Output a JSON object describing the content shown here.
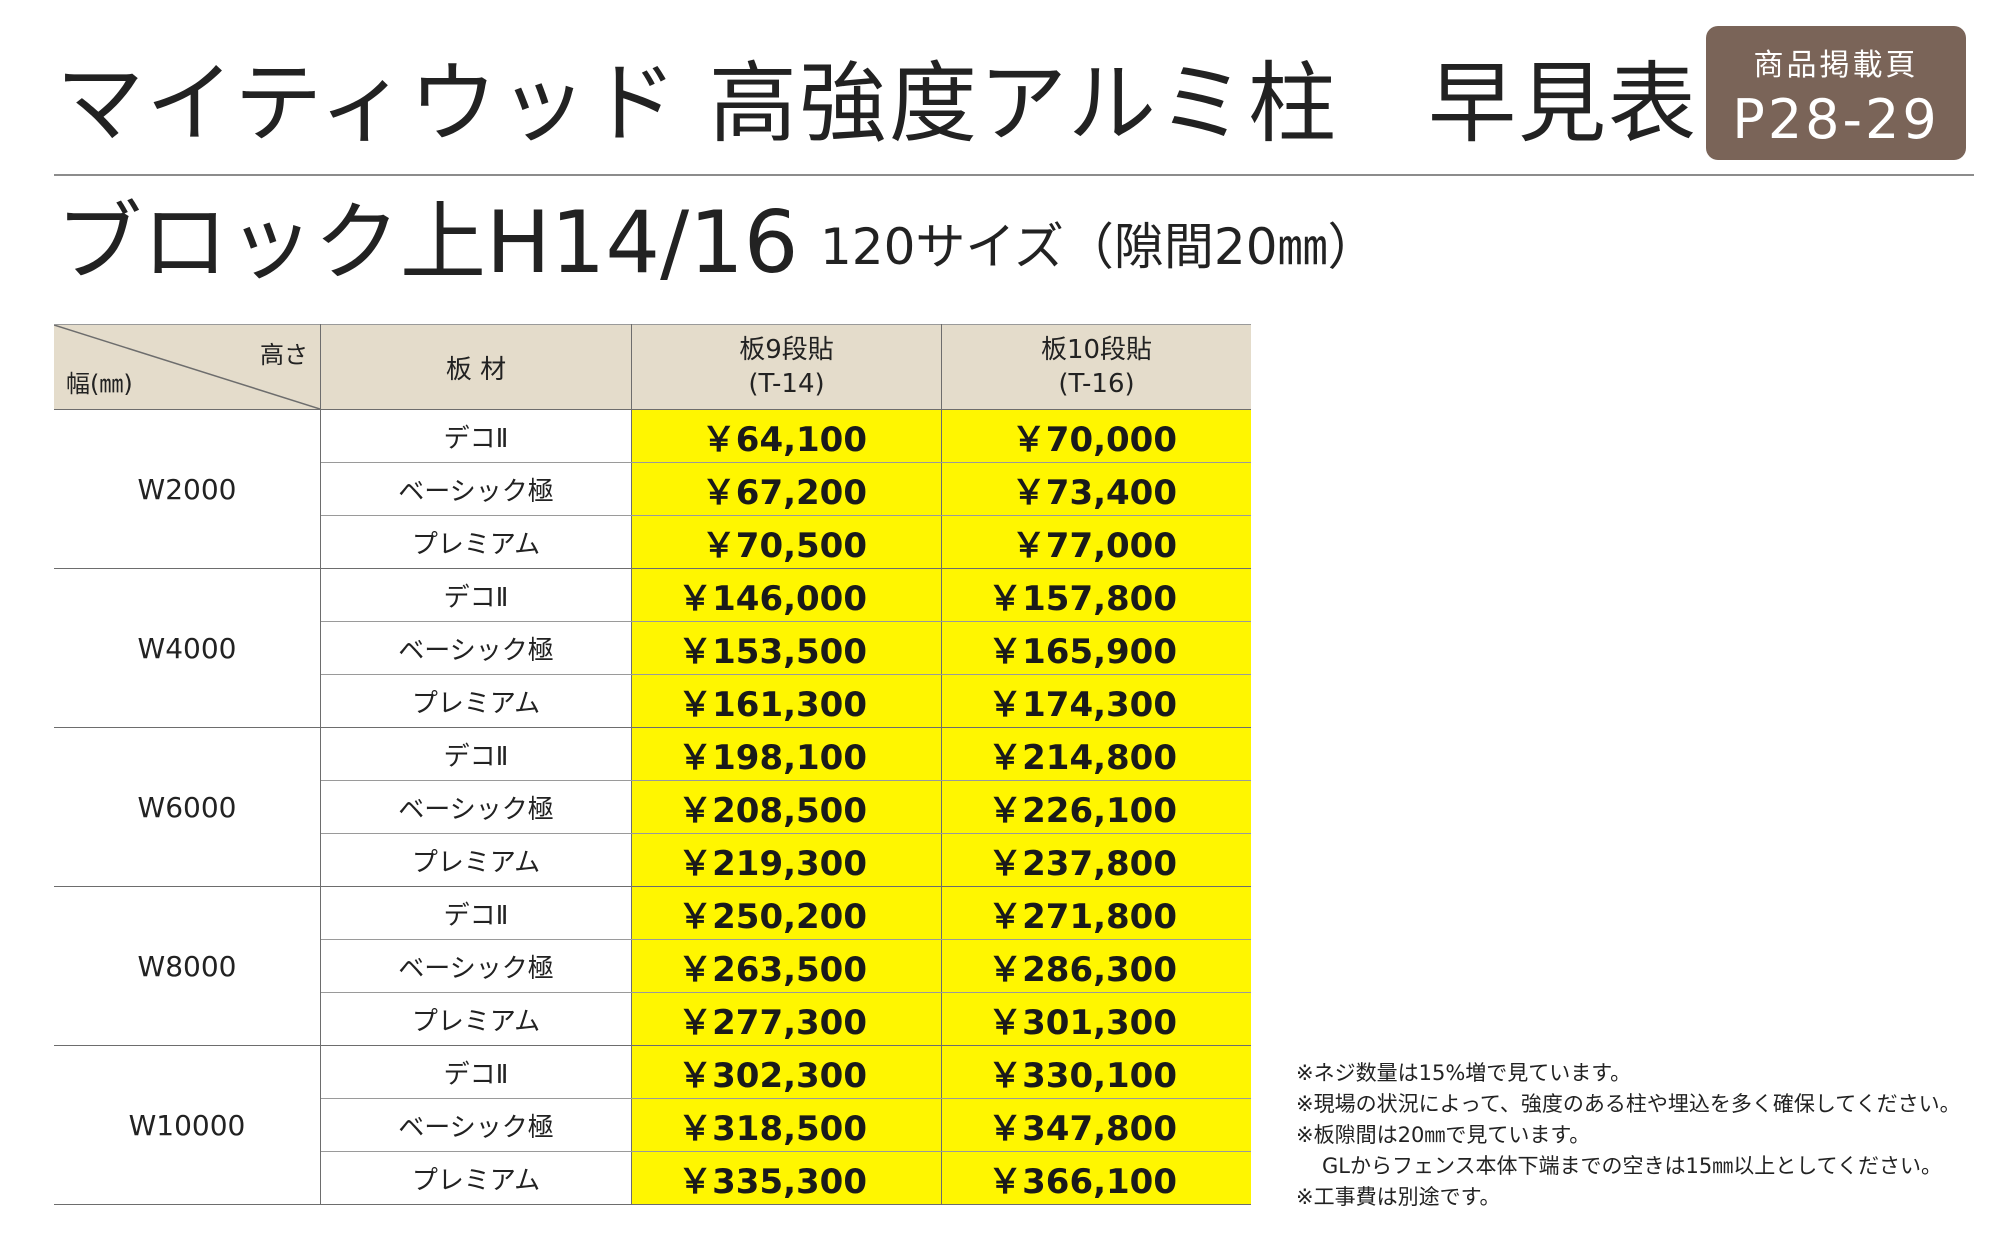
{
  "title": "マイティウッド 高強度アルミ柱　早見表",
  "badge": {
    "label": "商品掲載頁",
    "pages": "P28-29"
  },
  "subtitle": "ブロック上H14/16",
  "subtitle_note": "120サイズ（隙間20㎜）",
  "table": {
    "header": {
      "height_label": "高さ",
      "width_label": "幅(㎜)",
      "material_label": "板 材",
      "columns": [
        {
          "name": "板9段貼",
          "code": "(T-14)"
        },
        {
          "name": "板10段貼",
          "code": "(T-16)"
        }
      ]
    },
    "groups": [
      {
        "width": "W2000",
        "rows": [
          {
            "material": "デコⅡ",
            "prices": [
              "￥64,100",
              "￥70,000"
            ]
          },
          {
            "material": "ベーシック極",
            "prices": [
              "￥67,200",
              "￥73,400"
            ]
          },
          {
            "material": "プレミアム",
            "prices": [
              "￥70,500",
              "￥77,000"
            ]
          }
        ]
      },
      {
        "width": "W4000",
        "rows": [
          {
            "material": "デコⅡ",
            "prices": [
              "￥146,000",
              "￥157,800"
            ]
          },
          {
            "material": "ベーシック極",
            "prices": [
              "￥153,500",
              "￥165,900"
            ]
          },
          {
            "material": "プレミアム",
            "prices": [
              "￥161,300",
              "￥174,300"
            ]
          }
        ]
      },
      {
        "width": "W6000",
        "rows": [
          {
            "material": "デコⅡ",
            "prices": [
              "￥198,100",
              "￥214,800"
            ]
          },
          {
            "material": "ベーシック極",
            "prices": [
              "￥208,500",
              "￥226,100"
            ]
          },
          {
            "material": "プレミアム",
            "prices": [
              "￥219,300",
              "￥237,800"
            ]
          }
        ]
      },
      {
        "width": "W8000",
        "rows": [
          {
            "material": "デコⅡ",
            "prices": [
              "￥250,200",
              "￥271,800"
            ]
          },
          {
            "material": "ベーシック極",
            "prices": [
              "￥263,500",
              "￥286,300"
            ]
          },
          {
            "material": "プレミアム",
            "prices": [
              "￥277,300",
              "￥301,300"
            ]
          }
        ]
      },
      {
        "width": "W10000",
        "rows": [
          {
            "material": "デコⅡ",
            "prices": [
              "￥302,300",
              "￥330,100"
            ]
          },
          {
            "material": "ベーシック極",
            "prices": [
              "￥318,500",
              "￥347,800"
            ]
          },
          {
            "material": "プレミアム",
            "prices": [
              "￥335,300",
              "￥366,100"
            ]
          }
        ]
      }
    ]
  },
  "notes": [
    "※ネジ数量は15%増で見ています。",
    "※現場の状況によって、強度のある柱や埋込を多く確保してください。",
    "※板隙間は20㎜で見ています。",
    "GLからフェンス本体下端までの空きは15㎜以上としてください。",
    "※工事費は別途です。"
  ],
  "colors": {
    "price_highlight": "#fff600",
    "header_bg": "#e4dccb",
    "badge_bg": "#7a6458"
  }
}
